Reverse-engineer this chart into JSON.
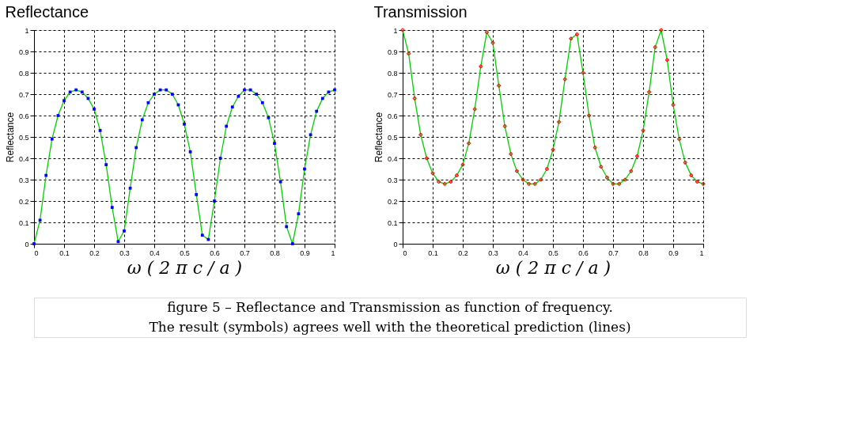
{
  "chart_data": [
    {
      "type": "line",
      "title": "Reflectance",
      "xlabel": "ω  ( 2 π  c  /  a )",
      "ylabel": "Reflectance",
      "xlim": [
        0,
        1
      ],
      "ylim": [
        0,
        1
      ],
      "xticks": [
        0,
        0.1,
        0.2,
        0.3,
        0.4,
        0.5,
        0.6,
        0.7,
        0.8,
        0.9,
        1
      ],
      "yticks": [
        0,
        0.1,
        0.2,
        0.3,
        0.4,
        0.5,
        0.6,
        0.7,
        0.8,
        0.9,
        1
      ],
      "grid": true,
      "x": [
        0,
        0.02,
        0.04,
        0.06,
        0.08,
        0.1,
        0.12,
        0.14,
        0.16,
        0.18,
        0.2,
        0.22,
        0.24,
        0.26,
        0.28,
        0.3,
        0.32,
        0.34,
        0.36,
        0.38,
        0.4,
        0.42,
        0.44,
        0.46,
        0.48,
        0.5,
        0.52,
        0.54,
        0.56,
        0.58,
        0.6,
        0.62,
        0.64,
        0.66,
        0.68,
        0.7,
        0.72,
        0.74,
        0.76,
        0.78,
        0.8,
        0.82,
        0.84,
        0.86,
        0.88,
        0.9,
        0.92,
        0.94,
        0.96,
        0.98,
        1
      ],
      "series": [
        {
          "color": "#00d000",
          "line_style": "solid",
          "values": [
            0,
            0.11,
            0.32,
            0.49,
            0.6,
            0.67,
            0.71,
            0.72,
            0.71,
            0.68,
            0.63,
            0.53,
            0.37,
            0.17,
            0.01,
            0.06,
            0.26,
            0.45,
            0.58,
            0.66,
            0.7,
            0.72,
            0.72,
            0.7,
            0.65,
            0.56,
            0.43,
            0.23,
            0.04,
            0.02,
            0.2,
            0.4,
            0.55,
            0.64,
            0.69,
            0.72,
            0.72,
            0.7,
            0.66,
            0.59,
            0.47,
            0.29,
            0.08,
            0,
            0.14,
            0.35,
            0.51,
            0.62,
            0.68,
            0.71,
            0.72
          ]
        },
        {
          "type": "scatter",
          "color": "#0000ff",
          "marker": "square",
          "values": [
            0,
            0.11,
            0.32,
            0.49,
            0.6,
            0.67,
            0.71,
            0.72,
            0.71,
            0.68,
            0.63,
            0.53,
            0.37,
            0.17,
            0.01,
            0.06,
            0.26,
            0.45,
            0.58,
            0.66,
            0.7,
            0.72,
            0.72,
            0.7,
            0.65,
            0.56,
            0.43,
            0.23,
            0.04,
            0.02,
            0.2,
            0.4,
            0.55,
            0.64,
            0.69,
            0.72,
            0.72,
            0.7,
            0.66,
            0.59,
            0.47,
            0.29,
            0.08,
            0,
            0.14,
            0.35,
            0.51,
            0.62,
            0.68,
            0.71,
            0.72
          ]
        }
      ],
      "annotations": [
        "figure 5 – Reflectance and Transmission as function of frequency.",
        "The result (symbols) agrees well with the theoretical prediction (lines)"
      ]
    },
    {
      "type": "line",
      "title": "Transmission",
      "xlabel": "ω  ( 2 π  c  /  a )",
      "ylabel": "Reflectance",
      "xlim": [
        0,
        1
      ],
      "ylim": [
        0,
        1
      ],
      "xticks": [
        0,
        0.1,
        0.2,
        0.3,
        0.4,
        0.5,
        0.6,
        0.7,
        0.8,
        0.9,
        1
      ],
      "yticks": [
        0,
        0.1,
        0.2,
        0.3,
        0.4,
        0.5,
        0.6,
        0.7,
        0.8,
        0.9,
        1
      ],
      "grid": true,
      "x": [
        0,
        0.02,
        0.04,
        0.06,
        0.08,
        0.1,
        0.12,
        0.14,
        0.16,
        0.18,
        0.2,
        0.22,
        0.24,
        0.26,
        0.28,
        0.3,
        0.32,
        0.34,
        0.36,
        0.38,
        0.4,
        0.42,
        0.44,
        0.46,
        0.48,
        0.5,
        0.52,
        0.54,
        0.56,
        0.58,
        0.6,
        0.62,
        0.64,
        0.66,
        0.68,
        0.7,
        0.72,
        0.74,
        0.76,
        0.78,
        0.8,
        0.82,
        0.84,
        0.86,
        0.88,
        0.9,
        0.92,
        0.94,
        0.96,
        0.98,
        1
      ],
      "series": [
        {
          "color": "#00d000",
          "line_style": "solid",
          "values": [
            1,
            0.89,
            0.68,
            0.51,
            0.4,
            0.33,
            0.29,
            0.28,
            0.29,
            0.32,
            0.37,
            0.47,
            0.63,
            0.83,
            0.99,
            0.94,
            0.74,
            0.55,
            0.42,
            0.34,
            0.3,
            0.28,
            0.28,
            0.3,
            0.35,
            0.44,
            0.57,
            0.77,
            0.96,
            0.98,
            0.8,
            0.6,
            0.45,
            0.36,
            0.31,
            0.28,
            0.28,
            0.3,
            0.34,
            0.41,
            0.53,
            0.71,
            0.92,
            1,
            0.86,
            0.65,
            0.49,
            0.38,
            0.32,
            0.29,
            0.28
          ]
        },
        {
          "type": "scatter",
          "color": "#ff0000",
          "marker": "cross",
          "values": [
            1,
            0.89,
            0.68,
            0.51,
            0.4,
            0.33,
            0.29,
            0.28,
            0.29,
            0.32,
            0.37,
            0.47,
            0.63,
            0.83,
            0.99,
            0.94,
            0.74,
            0.55,
            0.42,
            0.34,
            0.3,
            0.28,
            0.28,
            0.3,
            0.35,
            0.44,
            0.57,
            0.77,
            0.96,
            0.98,
            0.8,
            0.6,
            0.45,
            0.36,
            0.31,
            0.28,
            0.28,
            0.3,
            0.34,
            0.41,
            0.53,
            0.71,
            0.92,
            1,
            0.86,
            0.65,
            0.49,
            0.38,
            0.32,
            0.29,
            0.28
          ]
        }
      ]
    }
  ]
}
